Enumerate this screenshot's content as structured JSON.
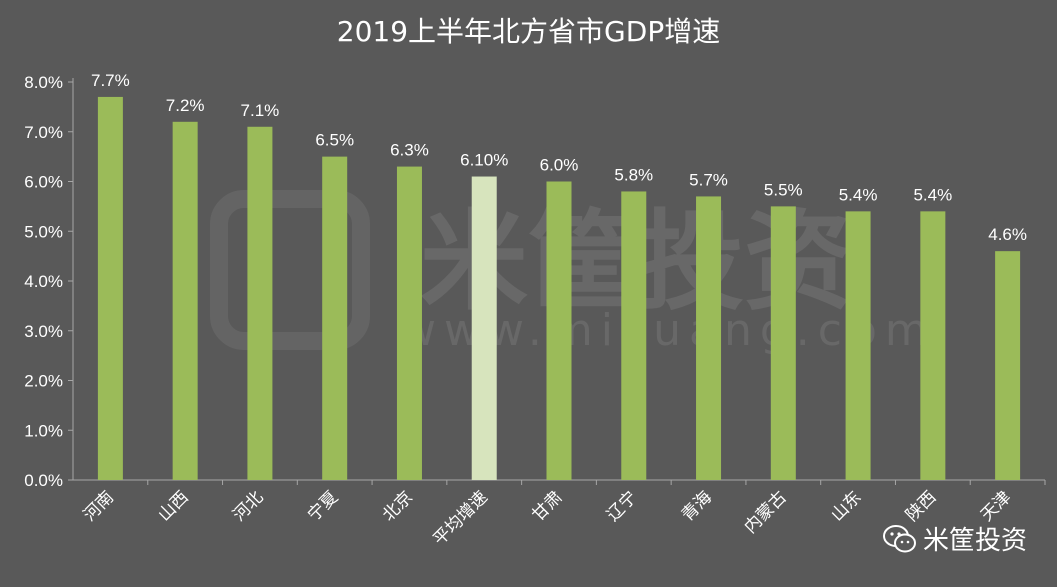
{
  "chart_data": {
    "type": "bar",
    "title": "2019上半年北方省市GDP增速",
    "categories": [
      "河南",
      "山西",
      "河北",
      "宁夏",
      "北京",
      "平均增速",
      "甘肃",
      "辽宁",
      "青海",
      "内蒙古",
      "山东",
      "陕西",
      "天津"
    ],
    "values": [
      7.7,
      7.2,
      7.1,
      6.5,
      6.3,
      6.1,
      6.0,
      5.8,
      5.7,
      5.5,
      5.4,
      5.4,
      4.6
    ],
    "data_labels": [
      "7.7%",
      "7.2%",
      "7.1%",
      "6.5%",
      "6.3%",
      "6.10%",
      "6.0%",
      "5.8%",
      "5.7%",
      "5.5%",
      "5.4%",
      "5.4%",
      "4.6%"
    ],
    "highlight_category": "平均增速",
    "y_ticks": [
      "0.0%",
      "1.0%",
      "2.0%",
      "3.0%",
      "4.0%",
      "5.0%",
      "6.0%",
      "7.0%",
      "8.0%"
    ],
    "ylim": [
      0,
      8
    ],
    "grid": false,
    "colors": {
      "background": "#595959",
      "bar": "#9BBB59",
      "highlight_bar": "#D7E4BD",
      "text": "#FFFFFF",
      "axis": "#A6A6A6"
    }
  },
  "watermark": {
    "text": "米筐投资",
    "url": "www.mikuang.com"
  },
  "brand": {
    "name": "米筐投资",
    "icon": "wechat-icon"
  }
}
